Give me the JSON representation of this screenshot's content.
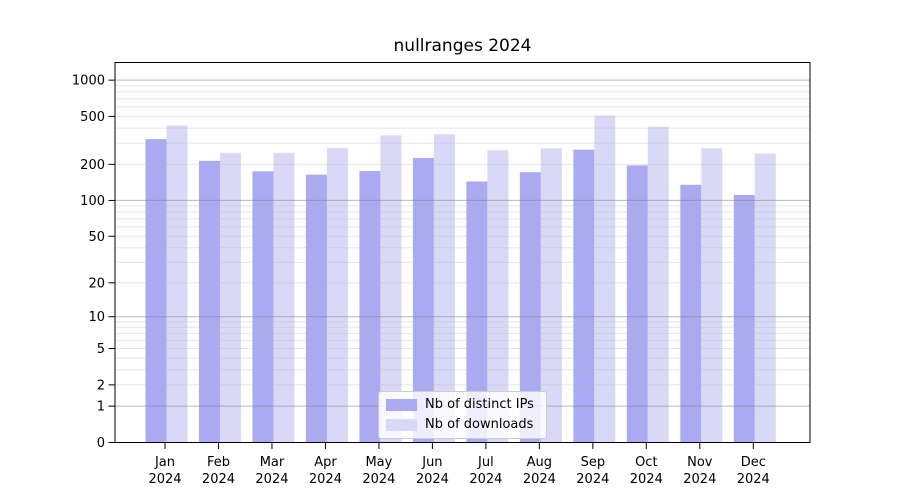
{
  "chart_data": {
    "type": "bar",
    "title": "nullranges 2024",
    "xlabel": "",
    "ylabel": "",
    "yscale": "log1p",
    "ylim": [
      0,
      1400
    ],
    "yticks": [
      0,
      1,
      2,
      5,
      10,
      20,
      50,
      100,
      200,
      500,
      1000
    ],
    "major_grid_values": [
      1,
      10,
      100,
      1000
    ],
    "grid": true,
    "legend_position": "lower center",
    "categories": [
      "Jan",
      "Feb",
      "Mar",
      "Apr",
      "May",
      "Jun",
      "Jul",
      "Aug",
      "Sep",
      "Oct",
      "Nov",
      "Dec"
    ],
    "year_label": "2024",
    "series": [
      {
        "name": "Nb of distinct IPs",
        "color": "#aaaaf2",
        "values": [
          324,
          214,
          175,
          164,
          176,
          226,
          144,
          172,
          265,
          196,
          135,
          111
        ]
      },
      {
        "name": "Nb of downloads",
        "color": "#d9d9f7",
        "values": [
          420,
          249,
          249,
          273,
          348,
          355,
          262,
          272,
          508,
          410,
          272,
          246
        ]
      }
    ]
  },
  "colors": {
    "background": "#ffffff",
    "axis": "#000000",
    "text": "#000000",
    "major_grid": "rgba(128,128,128,0.55)",
    "minor_grid": "rgba(180,180,180,0.35)"
  }
}
